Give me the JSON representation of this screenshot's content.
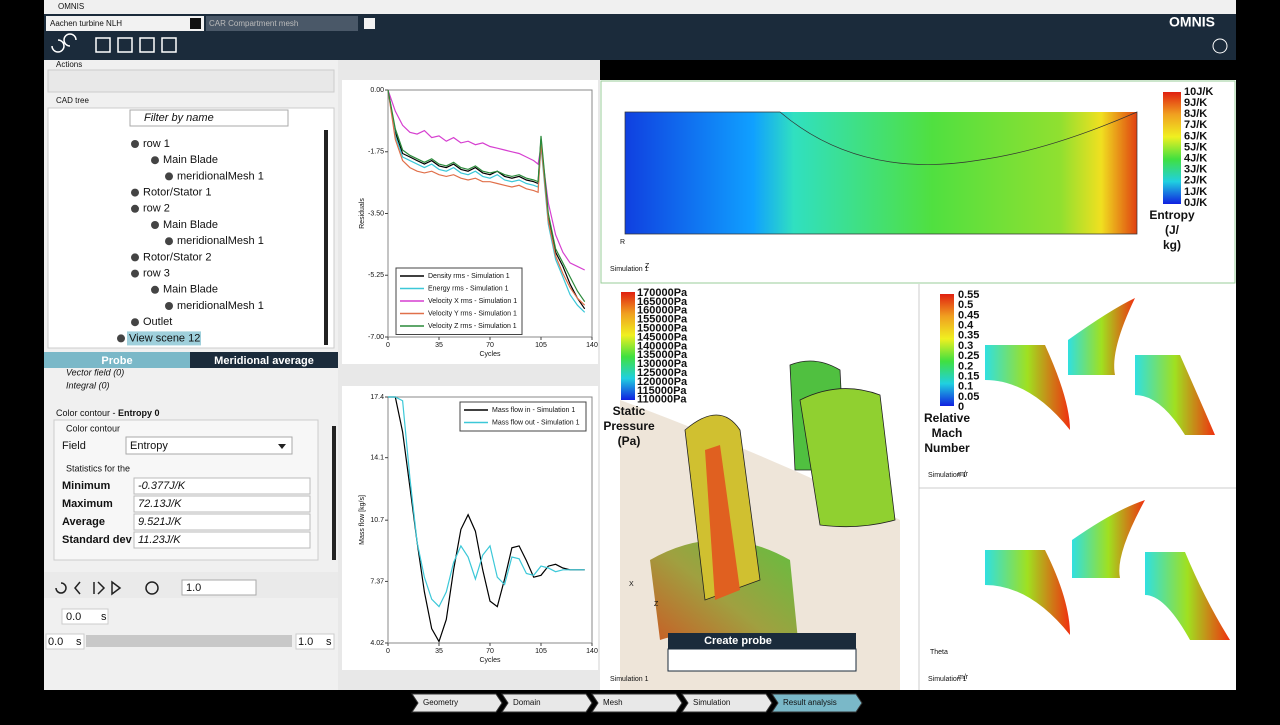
{
  "window": {
    "title": "OMNIS",
    "logo": "OMNIS"
  },
  "tabs": [
    "Aachen turbine NLH",
    "CAR Compartment mesh"
  ],
  "left_panel": {
    "actions_label": "Actions",
    "cad_tree_label": "CAD tree",
    "filter_placeholder": "Filter by name",
    "tree": [
      "row 1",
      "Main Blade",
      "meridionalMesh 1",
      "Rotor/Stator 1",
      "row 2",
      "Main Blade",
      "meridionalMesh 1",
      "Rotor/Stator 2",
      "row 3",
      "Main Blade",
      "meridionalMesh 1",
      "Outlet",
      "View scene 12"
    ],
    "panel_tabs": [
      "Probe",
      "Meridional average"
    ],
    "probe_items": [
      "Vector field (0)",
      "Integral (0)"
    ],
    "contour_header": "Color contour - ",
    "contour_name": "Entropy 0",
    "contour_group": "Color contour",
    "field_label": "Field",
    "field_value": "Entropy",
    "stats_group": "Statistics for the",
    "stats": [
      {
        "label": "Minimum",
        "value": "-0.377J/K"
      },
      {
        "label": "Maximum",
        "value": "72.13J/K"
      },
      {
        "label": "Average",
        "value": "9.521J/K"
      },
      {
        "label": "Standard dev",
        "value": "11.23J/K"
      }
    ],
    "speed": "1.0",
    "time_current": "0.0",
    "time_start": "0.0",
    "time_end": "1.0",
    "time_unit": "s"
  },
  "charts": [
    {
      "type": "line",
      "ylabel": "Residuals",
      "xlabel": "Cycles",
      "xlim": [
        0,
        140
      ],
      "xticks": [
        0,
        35,
        70,
        105,
        140
      ],
      "ylim": [
        -7,
        0
      ],
      "yticks": [
        {
          "value": 0,
          "label": "0.00"
        },
        {
          "value": -1.75,
          "label": "-1.75"
        },
        {
          "value": -3.5,
          "label": "-3.50"
        },
        {
          "value": -5.25,
          "label": "-5.25"
        },
        {
          "value": -7,
          "label": "-7.00"
        }
      ],
      "x": [
        0,
        5,
        10,
        15,
        20,
        25,
        30,
        35,
        40,
        45,
        50,
        55,
        60,
        65,
        70,
        75,
        80,
        85,
        90,
        95,
        100,
        103,
        105,
        110,
        115,
        120,
        125,
        130,
        135
      ],
      "series": [
        {
          "name": "Density rms - Simulation 1",
          "color": "#000000",
          "values": [
            0,
            -1.2,
            -1.8,
            -1.9,
            -2.0,
            -2.1,
            -2.0,
            -2.15,
            -2.2,
            -2.1,
            -2.25,
            -2.3,
            -2.2,
            -2.35,
            -2.4,
            -2.3,
            -2.45,
            -2.5,
            -2.45,
            -2.55,
            -2.6,
            -2.65,
            -1.4,
            -3.6,
            -4.6,
            -5.0,
            -5.5,
            -5.9,
            -6.2
          ]
        },
        {
          "name": "Energy rms - Simulation 1",
          "color": "#3cc8d8",
          "values": [
            0,
            -1.3,
            -1.9,
            -2.0,
            -2.1,
            -2.2,
            -2.1,
            -2.25,
            -2.3,
            -2.2,
            -2.35,
            -2.4,
            -2.3,
            -2.45,
            -2.5,
            -2.4,
            -2.55,
            -2.6,
            -2.55,
            -2.65,
            -2.7,
            -2.75,
            -1.6,
            -3.8,
            -4.8,
            -5.3,
            -5.8,
            -6.1,
            -6.3
          ]
        },
        {
          "name": "Velocity X rms - Simulation 1",
          "color": "#d63fd0",
          "values": [
            0,
            -0.6,
            -1.0,
            -1.2,
            -1.25,
            -1.15,
            -1.35,
            -1.3,
            -1.45,
            -1.35,
            -1.5,
            -1.45,
            -1.55,
            -1.5,
            -1.6,
            -1.65,
            -1.7,
            -1.75,
            -1.8,
            -1.9,
            -2.0,
            -2.1,
            -1.6,
            -3.2,
            -4.1,
            -4.6,
            -4.9,
            -5.0,
            -5.1
          ]
        },
        {
          "name": "Velocity Y rms - Simulation 1",
          "color": "#e0704a",
          "values": [
            0,
            -1.4,
            -2.0,
            -2.2,
            -2.3,
            -2.35,
            -2.3,
            -2.4,
            -2.45,
            -2.4,
            -2.5,
            -2.55,
            -2.5,
            -2.6,
            -2.6,
            -2.65,
            -2.7,
            -2.75,
            -2.7,
            -2.8,
            -2.85,
            -2.9,
            -1.5,
            -3.7,
            -4.7,
            -5.2,
            -5.6,
            -5.9,
            -6.1
          ]
        },
        {
          "name": "Velocity Z rms - Simulation 1",
          "color": "#2a8a3a",
          "values": [
            0,
            -1.1,
            -1.7,
            -1.85,
            -1.95,
            -2.05,
            -1.95,
            -2.1,
            -2.15,
            -2.05,
            -2.2,
            -2.25,
            -2.15,
            -2.3,
            -2.35,
            -2.3,
            -2.4,
            -2.45,
            -2.4,
            -2.5,
            -2.55,
            -2.6,
            -1.3,
            -3.5,
            -4.5,
            -4.9,
            -5.3,
            -5.7,
            -6.0
          ]
        }
      ]
    },
    {
      "type": "line",
      "ylabel": "Mass flow [kg/s]",
      "xlabel": "Cycles",
      "xlim": [
        0,
        140
      ],
      "xticks": [
        0,
        35,
        70,
        105,
        140
      ],
      "ylim": [
        4.02,
        17.4
      ],
      "yticks": [
        4.02,
        7.37,
        10.7,
        14.1,
        17.4
      ],
      "x": [
        0,
        5,
        10,
        15,
        20,
        25,
        30,
        35,
        40,
        45,
        50,
        55,
        60,
        65,
        70,
        75,
        80,
        85,
        90,
        95,
        100,
        105,
        110,
        115,
        120,
        125,
        130,
        135
      ],
      "series": [
        {
          "name": "Mass flow in - Simulation 1",
          "color": "#000000",
          "values": [
            17.4,
            17.4,
            15.5,
            12.5,
            9.5,
            6.8,
            4.8,
            4.1,
            5.3,
            8.0,
            10.2,
            11.0,
            10.1,
            8.0,
            6.3,
            6.0,
            7.5,
            9.2,
            9.3,
            8.5,
            7.6,
            7.7,
            8.2,
            8.3,
            8.1,
            8.0,
            8.0,
            8.0
          ]
        },
        {
          "name": "Mass flow out - Simulation 1",
          "color": "#3cc8d8",
          "values": [
            17.4,
            17.4,
            17.2,
            13.0,
            9.5,
            7.6,
            6.4,
            6.0,
            6.8,
            8.4,
            9.3,
            8.7,
            7.5,
            8.8,
            9.3,
            7.6,
            7.2,
            8.7,
            8.6,
            7.8,
            7.7,
            8.2,
            8.1,
            7.9,
            8.0,
            8.0,
            8.0,
            8.0
          ]
        }
      ]
    }
  ],
  "views": {
    "entropy_labels": [
      "10J/K",
      "9J/K",
      "8J/K",
      "7J/K",
      "6J/K",
      "5J/K",
      "4J/K",
      "3J/K",
      "2J/K",
      "1J/K",
      "0J/K"
    ],
    "entropy_title": [
      "Entropy",
      "(J/",
      "kg)"
    ],
    "pressure_labels": [
      "170000Pa",
      "165000Pa",
      "160000Pa",
      "155000Pa",
      "150000Pa",
      "145000Pa",
      "140000Pa",
      "135000Pa",
      "130000Pa",
      "125000Pa",
      "120000Pa",
      "115000Pa",
      "110000Pa"
    ],
    "pressure_title": [
      "Static",
      "Pressure",
      "(Pa)"
    ],
    "mach_labels": [
      "0.55",
      "0.5",
      "0.45",
      "0.4",
      "0.35",
      "0.3",
      "0.25",
      "0.2",
      "0.15",
      "0.1",
      "0.05",
      "0"
    ],
    "mach_title": [
      "Relative",
      "Mach",
      "Number"
    ],
    "simulation": "Simulation 1",
    "axis_r": "R",
    "axis_z": "Z",
    "axis_x": "X",
    "axis_theta": "Theta",
    "axis_mr": "m/r",
    "create_probe": "Create probe"
  },
  "workflow": [
    "Geometry",
    "Domain",
    "Mesh",
    "Simulation",
    "Result analysis"
  ]
}
